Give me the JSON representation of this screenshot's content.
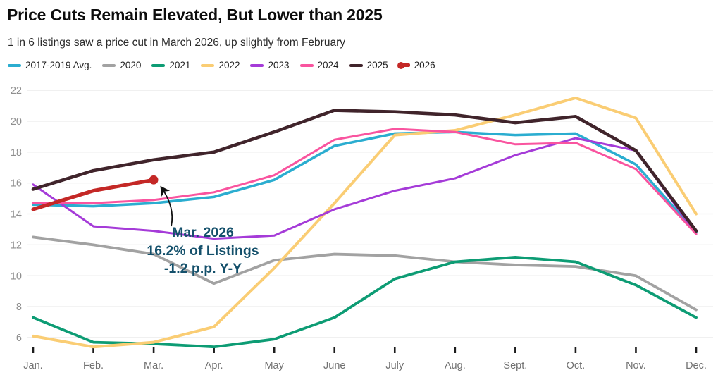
{
  "header": {
    "title": "Price Cuts Remain Elevated, But Lower than 2025",
    "subtitle": "1 in 6 listings saw a price cut in March 2026, up slightly from February"
  },
  "annotation": {
    "lines": [
      "Mar. 2026",
      "16.2% of Listings",
      "-1.2 p.p. Y-Y"
    ],
    "color": "#14506B",
    "points_at": "red 2026 line endpoint (Mar., 16.2)"
  },
  "colors": {
    "background": "#ffffff",
    "gridline": "#e7e7e7",
    "axis_tick": "#1c1c1c",
    "axis_label": "#717171",
    "title_text": "#0d0d0d",
    "subtitle_text": "#2a2a2a",
    "annotation_text": "#14506B"
  },
  "chart_data": {
    "type": "line",
    "title": "Price Cuts Remain Elevated, But Lower than 2025",
    "subtitle": "1 in 6 listings saw a price cut in March 2026, up slightly from February",
    "xlabel": "",
    "ylabel": "",
    "units": "% of listings with a price cut",
    "grid": "horizontal",
    "legend_position": "top",
    "ylim": [
      5,
      22.8
    ],
    "yticks": [
      6,
      8,
      10,
      12,
      14,
      16,
      18,
      20,
      22
    ],
    "categories": [
      "Jan.",
      "Feb.",
      "Mar.",
      "Apr.",
      "May",
      "June",
      "July",
      "Aug.",
      "Sept.",
      "Oct.",
      "Nov.",
      "Dec."
    ],
    "series": [
      {
        "name": "2017-2019 Avg.",
        "color": "#2BADD0",
        "width": 3.6,
        "values": [
          14.6,
          14.5,
          14.7,
          15.1,
          16.2,
          18.4,
          19.2,
          19.3,
          19.1,
          19.2,
          17.2,
          12.8
        ]
      },
      {
        "name": "2020",
        "color": "#A2A2A2",
        "width": 3.8,
        "values": [
          12.5,
          12.0,
          11.4,
          9.5,
          11.0,
          11.4,
          11.3,
          10.9,
          10.7,
          10.6,
          10.0,
          7.8
        ]
      },
      {
        "name": "2021",
        "color": "#0D9C74",
        "width": 3.8,
        "values": [
          7.3,
          5.7,
          5.6,
          5.4,
          5.9,
          7.3,
          9.8,
          10.9,
          11.2,
          10.9,
          9.4,
          7.3
        ]
      },
      {
        "name": "2022",
        "color": "#FACD74",
        "width": 4.0,
        "values": [
          6.1,
          5.4,
          5.7,
          6.7,
          10.5,
          14.7,
          19.1,
          19.4,
          20.4,
          21.5,
          20.2,
          14.0
        ]
      },
      {
        "name": "2023",
        "color": "#A53BD8",
        "width": 3.0,
        "values": [
          15.9,
          13.2,
          12.9,
          12.4,
          12.6,
          14.3,
          15.5,
          16.3,
          17.8,
          18.9,
          18.1,
          12.7
        ]
      },
      {
        "name": "2024",
        "color": "#F9549F",
        "width": 3.0,
        "values": [
          14.7,
          14.7,
          14.9,
          15.4,
          16.5,
          18.8,
          19.5,
          19.3,
          18.5,
          18.6,
          16.9,
          12.7
        ]
      },
      {
        "name": "2025",
        "color": "#40242B",
        "width": 4.6,
        "values": [
          15.6,
          16.8,
          17.5,
          18.0,
          19.3,
          20.7,
          20.6,
          20.4,
          19.9,
          20.3,
          18.1,
          12.9
        ]
      },
      {
        "name": "2026",
        "color": "#C42826",
        "width": 5.2,
        "endpoint_dot": true,
        "values": [
          14.3,
          15.5,
          16.2,
          null,
          null,
          null,
          null,
          null,
          null,
          null,
          null,
          null
        ]
      }
    ]
  }
}
